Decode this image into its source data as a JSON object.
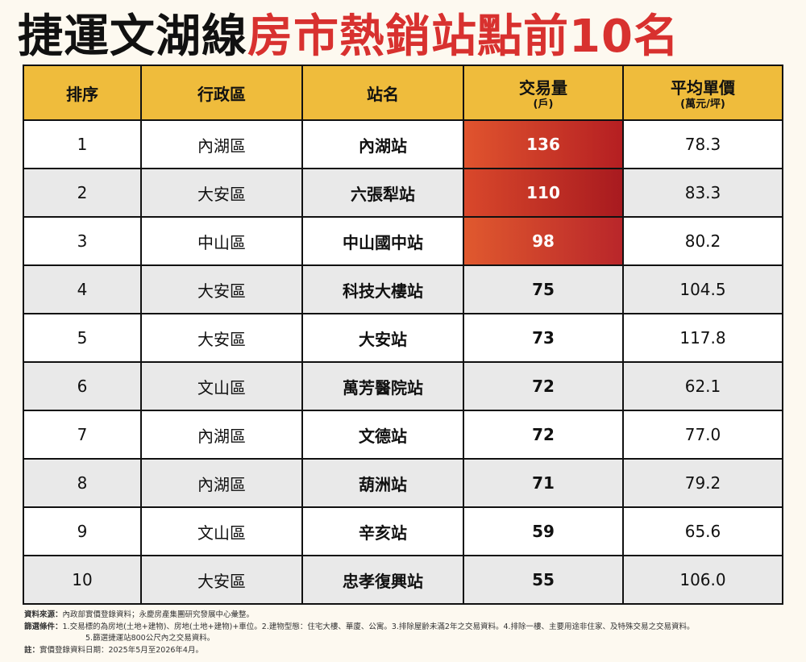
{
  "title": {
    "black": "捷運文湖線",
    "red": "房市熱銷站點前10名"
  },
  "headers": {
    "rank": "排序",
    "district": "行政區",
    "station": "站名",
    "volume": "交易量",
    "volume_unit": "(戶)",
    "price": "平均單價",
    "price_unit": "(萬元/坪)"
  },
  "rows": [
    {
      "rank": "1",
      "district": "內湖區",
      "station": "內湖站",
      "volume": "136",
      "price": "78.3"
    },
    {
      "rank": "2",
      "district": "大安區",
      "station": "六張犁站",
      "volume": "110",
      "price": "83.3"
    },
    {
      "rank": "3",
      "district": "中山區",
      "station": "中山國中站",
      "volume": "98",
      "price": "80.2"
    },
    {
      "rank": "4",
      "district": "大安區",
      "station": "科技大樓站",
      "volume": "75",
      "price": "104.5"
    },
    {
      "rank": "5",
      "district": "大安區",
      "station": "大安站",
      "volume": "73",
      "price": "117.8"
    },
    {
      "rank": "6",
      "district": "文山區",
      "station": "萬芳醫院站",
      "volume": "72",
      "price": "62.1"
    },
    {
      "rank": "7",
      "district": "內湖區",
      "station": "文德站",
      "volume": "72",
      "price": "77.0"
    },
    {
      "rank": "8",
      "district": "內湖區",
      "station": "葫洲站",
      "volume": "71",
      "price": "79.2"
    },
    {
      "rank": "9",
      "district": "文山區",
      "station": "辛亥站",
      "volume": "59",
      "price": "65.6"
    },
    {
      "rank": "10",
      "district": "大安區",
      "station": "忠孝復興站",
      "volume": "55",
      "price": "106.0"
    }
  ],
  "notes": {
    "source_label": "資料來源：",
    "source_text": "內政部實價登錄資料；永慶房產集團研究發展中心彙整。",
    "filter_label": "篩選條件：",
    "filter_text": "1.交易標的為房地(土地+建物)、房地(土地+建物)+車位。2.建物型態：住宅大樓、華廈、公寓。3.排除屋齡未滿2年之交易資料。4.排除一樓、主要用途非住家、及特殊交易之交易資料。",
    "filter_text2": "5.篩選捷運站800公尺內之交易資料。",
    "note_label": "註：",
    "note_text": "實價登錄資料日期：2025年5月至2026年4月。"
  },
  "colors": {
    "title_red": "#d8312f",
    "header_gold": "#efbc3c",
    "hot_red": "#b51f22"
  }
}
